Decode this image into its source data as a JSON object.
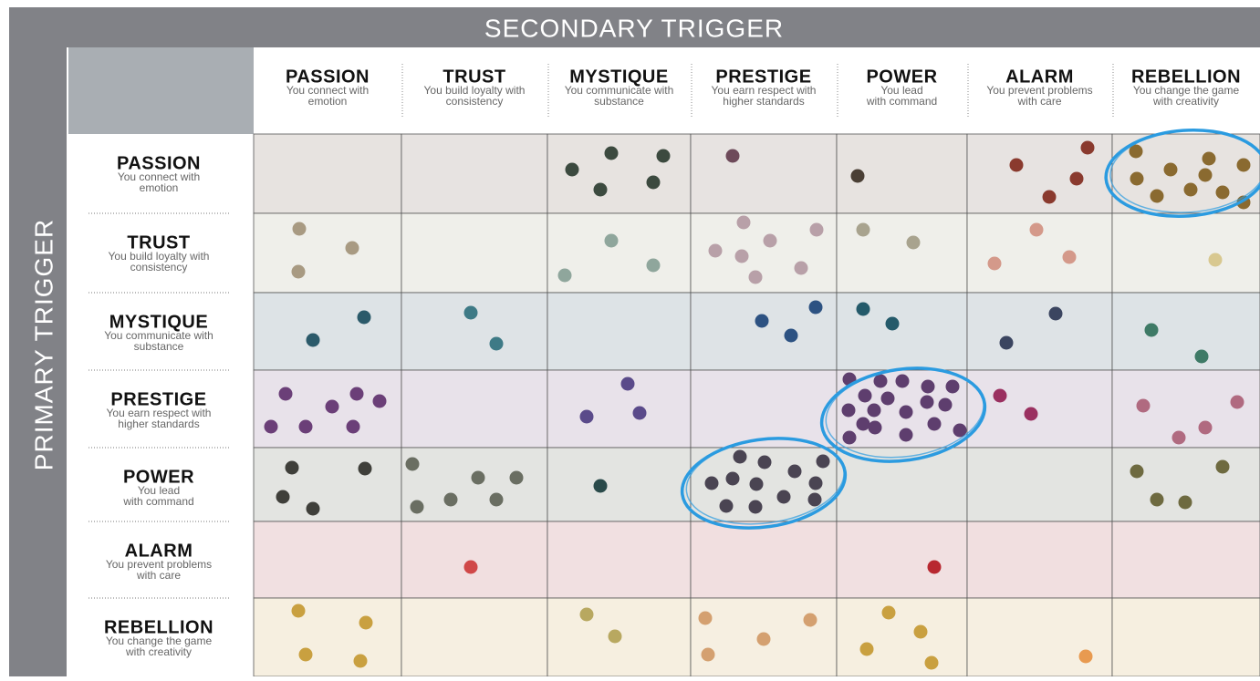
{
  "header": {
    "title": "SECONDARY TRIGGER",
    "side_title": "PRIMARY TRIGGER"
  },
  "triggers": [
    {
      "name": "PASSION",
      "description": [
        "You connect with",
        "emotion"
      ]
    },
    {
      "name": "TRUST",
      "description": [
        "You build loyalty with",
        "consistency"
      ]
    },
    {
      "name": "MYSTIQUE",
      "description": [
        "You communicate with",
        "substance"
      ]
    },
    {
      "name": "PRESTIGE",
      "description": [
        "You earn respect with",
        "higher standards"
      ]
    },
    {
      "name": "POWER",
      "description": [
        "You lead",
        "with command"
      ]
    },
    {
      "name": "ALARM",
      "description": [
        "You prevent problems",
        "with care"
      ]
    },
    {
      "name": "REBELLION",
      "description": [
        "You change the game",
        "with creativity"
      ]
    }
  ]
}
